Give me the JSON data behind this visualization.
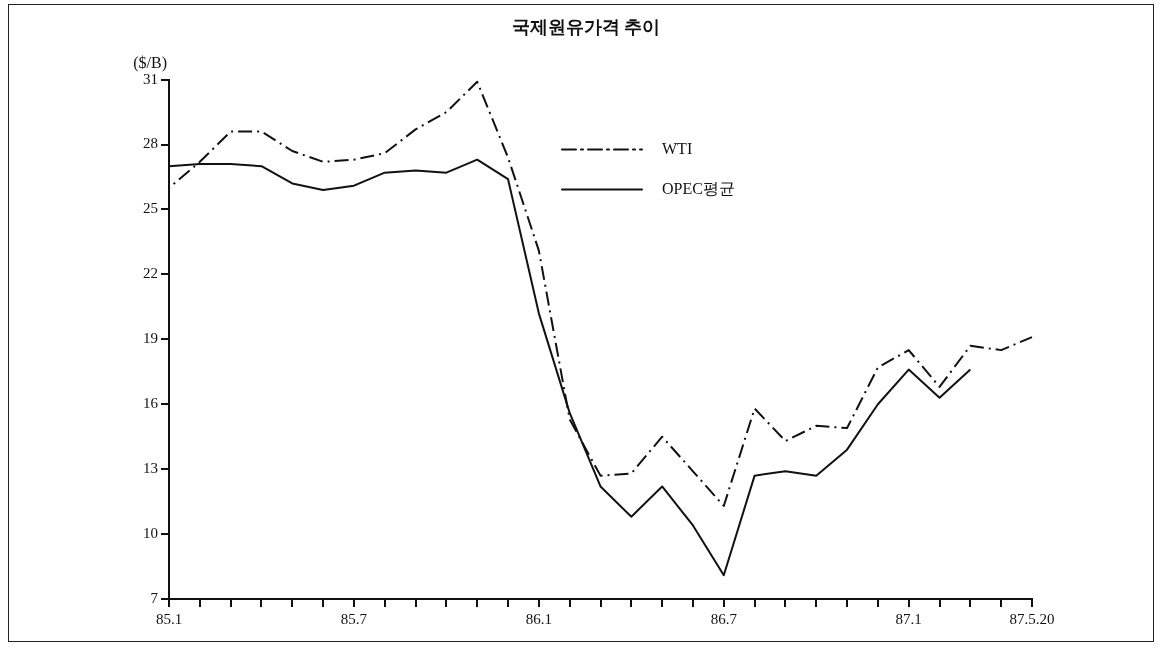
{
  "chart_data": {
    "type": "line",
    "title": "국제원유가격 추이",
    "ylabel": "($/B)",
    "categories": [
      "85.1",
      null,
      null,
      null,
      null,
      null,
      "85.7",
      null,
      null,
      null,
      null,
      null,
      "86.1",
      null,
      null,
      null,
      null,
      null,
      "86.7",
      null,
      null,
      null,
      null,
      null,
      "87.1",
      null,
      null,
      null,
      "87.5.20"
    ],
    "series": [
      {
        "name": "WTI",
        "color": "#111111",
        "line_style": "dashed",
        "values": [
          26.0,
          27.2,
          28.6,
          28.6,
          27.7,
          27.2,
          27.3,
          27.6,
          28.7,
          29.5,
          30.9,
          27.4,
          23.1,
          15.3,
          12.7,
          12.8,
          14.5,
          12.9,
          11.3,
          15.8,
          14.3,
          15.0,
          14.9,
          17.7,
          18.5,
          16.8,
          18.7,
          18.5,
          19.1
        ]
      },
      {
        "name": "OPEC평균",
        "color": "#111111",
        "line_style": "solid",
        "values": [
          27.0,
          27.1,
          27.1,
          27.0,
          26.2,
          25.9,
          26.1,
          26.7,
          26.8,
          26.7,
          27.3,
          26.4,
          20.2,
          15.6,
          12.2,
          10.8,
          12.2,
          10.4,
          8.1,
          12.7,
          12.9,
          12.7,
          13.9,
          16.0,
          17.6,
          16.3,
          17.6,
          null,
          null
        ]
      }
    ],
    "ylim": [
      7,
      31
    ],
    "yticks": [
      7,
      10,
      13,
      16,
      19,
      22,
      25,
      28,
      31
    ],
    "grid": false,
    "legend": "top right",
    "marker": "none"
  }
}
